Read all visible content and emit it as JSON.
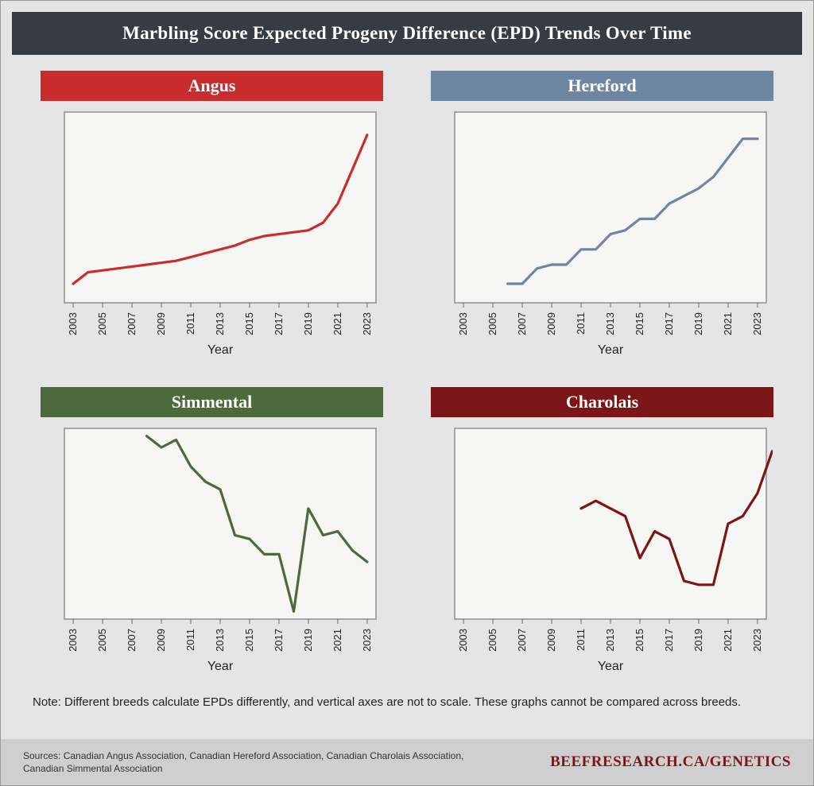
{
  "header": {
    "title": "Marbling Score Expected Progeny Difference (EPD) Trends Over Time",
    "bg": "#363c44",
    "fg": "#ffffff",
    "fontsize": 23
  },
  "layout": {
    "outer_bg": "#e5e5e5",
    "outer_border": "#9a9a9a",
    "plot_bg": "#f6f6f4",
    "plot_border": "#8f8f8f",
    "footer_bg": "#cfcfcf"
  },
  "x_axis": {
    "label": "Year",
    "ticks": [
      2003,
      2005,
      2007,
      2009,
      2011,
      2013,
      2015,
      2017,
      2019,
      2021,
      2023
    ],
    "xlim": [
      2002.4,
      2023.6
    ],
    "label_fontsize": 16,
    "tick_fontsize": 13
  },
  "panels": [
    {
      "key": "angus",
      "title": "Angus",
      "title_bg": "#c82c2c",
      "line_color": "#c82c2c",
      "line_width": 3.2,
      "ylim": [
        0,
        100
      ],
      "x": [
        2003,
        2004,
        2005,
        2006,
        2007,
        2008,
        2009,
        2010,
        2011,
        2012,
        2013,
        2014,
        2015,
        2016,
        2017,
        2018,
        2019,
        2020,
        2021,
        2022,
        2023
      ],
      "y": [
        10,
        16,
        17,
        18,
        19,
        20,
        21,
        22,
        24,
        26,
        28,
        30,
        33,
        35,
        36,
        37,
        38,
        42,
        52,
        70,
        88
      ]
    },
    {
      "key": "hereford",
      "title": "Hereford",
      "title_bg": "#6f86a3",
      "line_color": "#6f86a3",
      "line_width": 3.2,
      "ylim": [
        0,
        100
      ],
      "x": [
        2006,
        2007,
        2008,
        2009,
        2010,
        2011,
        2012,
        2013,
        2014,
        2015,
        2016,
        2017,
        2018,
        2019,
        2020,
        2021,
        2022,
        2023
      ],
      "y": [
        10,
        10,
        18,
        20,
        20,
        28,
        28,
        36,
        38,
        44,
        44,
        52,
        56,
        60,
        66,
        76,
        86,
        86
      ]
    },
    {
      "key": "simmental",
      "title": "Simmental",
      "title_bg": "#4d6a3c",
      "line_color": "#4d6a3c",
      "line_width": 3.2,
      "ylim": [
        0,
        100
      ],
      "x": [
        2008,
        2009,
        2010,
        2011,
        2012,
        2013,
        2014,
        2015,
        2016,
        2017,
        2018,
        2019,
        2020,
        2021,
        2022,
        2023
      ],
      "y": [
        96,
        90,
        94,
        80,
        72,
        68,
        44,
        42,
        34,
        34,
        4,
        58,
        44,
        46,
        36,
        30
      ]
    },
    {
      "key": "charolais",
      "title": "Charolais",
      "title_bg": "#7c1616",
      "line_color": "#7c1616",
      "line_width": 3.2,
      "ylim": [
        0,
        100
      ],
      "x": [
        2011,
        2012,
        2013,
        2014,
        2015,
        2016,
        2017,
        2018,
        2019,
        2020,
        2021,
        2022,
        2023,
        2024
      ],
      "y": [
        58,
        62,
        58,
        54,
        32,
        46,
        42,
        20,
        18,
        18,
        50,
        54,
        66,
        88
      ]
    }
  ],
  "note": "Note: Different breeds calculate EPDs differently, and vertical axes are not to scale. These graphs cannot be compared across breeds.",
  "footer": {
    "sources_label": "Sources:",
    "sources_body": "Canadian Angus Association, Canadian Hereford Association, Canadian Charolais Association, Canadian Simmental Association",
    "brand": "BEEFRESEARCH.CA/GENETICS",
    "brand_color": "#7c1616"
  }
}
